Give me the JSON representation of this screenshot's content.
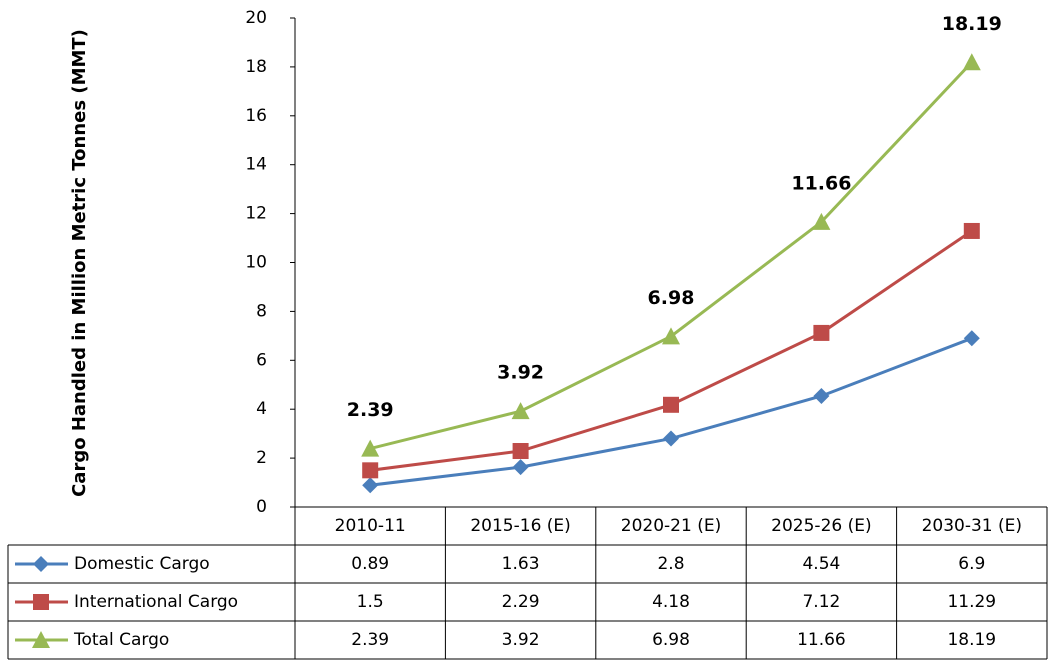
{
  "chart_data": {
    "type": "line",
    "y_axis_label": "Cargo Handled in Million Metric Tonnes (MMT)",
    "categories": [
      "2010-11",
      "2015-16 (E)",
      "2020-21 (E)",
      "2025-26 (E)",
      "2030-31 (E)"
    ],
    "series": [
      {
        "name": "Domestic Cargo",
        "color": "#4a7ebb",
        "marker": "diamond",
        "values": [
          0.89,
          1.63,
          2.8,
          4.54,
          6.9
        ]
      },
      {
        "name": "International Cargo",
        "color": "#be4b48",
        "marker": "square",
        "values": [
          1.5,
          2.29,
          4.18,
          7.12,
          11.29
        ]
      },
      {
        "name": "Total Cargo",
        "color": "#98b954",
        "marker": "triangle",
        "values": [
          2.39,
          3.92,
          6.98,
          11.66,
          18.19
        ],
        "data_labels": true
      }
    ],
    "ylim": [
      0,
      20
    ],
    "yticks": [
      0,
      2,
      4,
      6,
      8,
      10,
      12,
      14,
      16,
      18,
      20
    ],
    "grid": false,
    "data_table": true
  }
}
